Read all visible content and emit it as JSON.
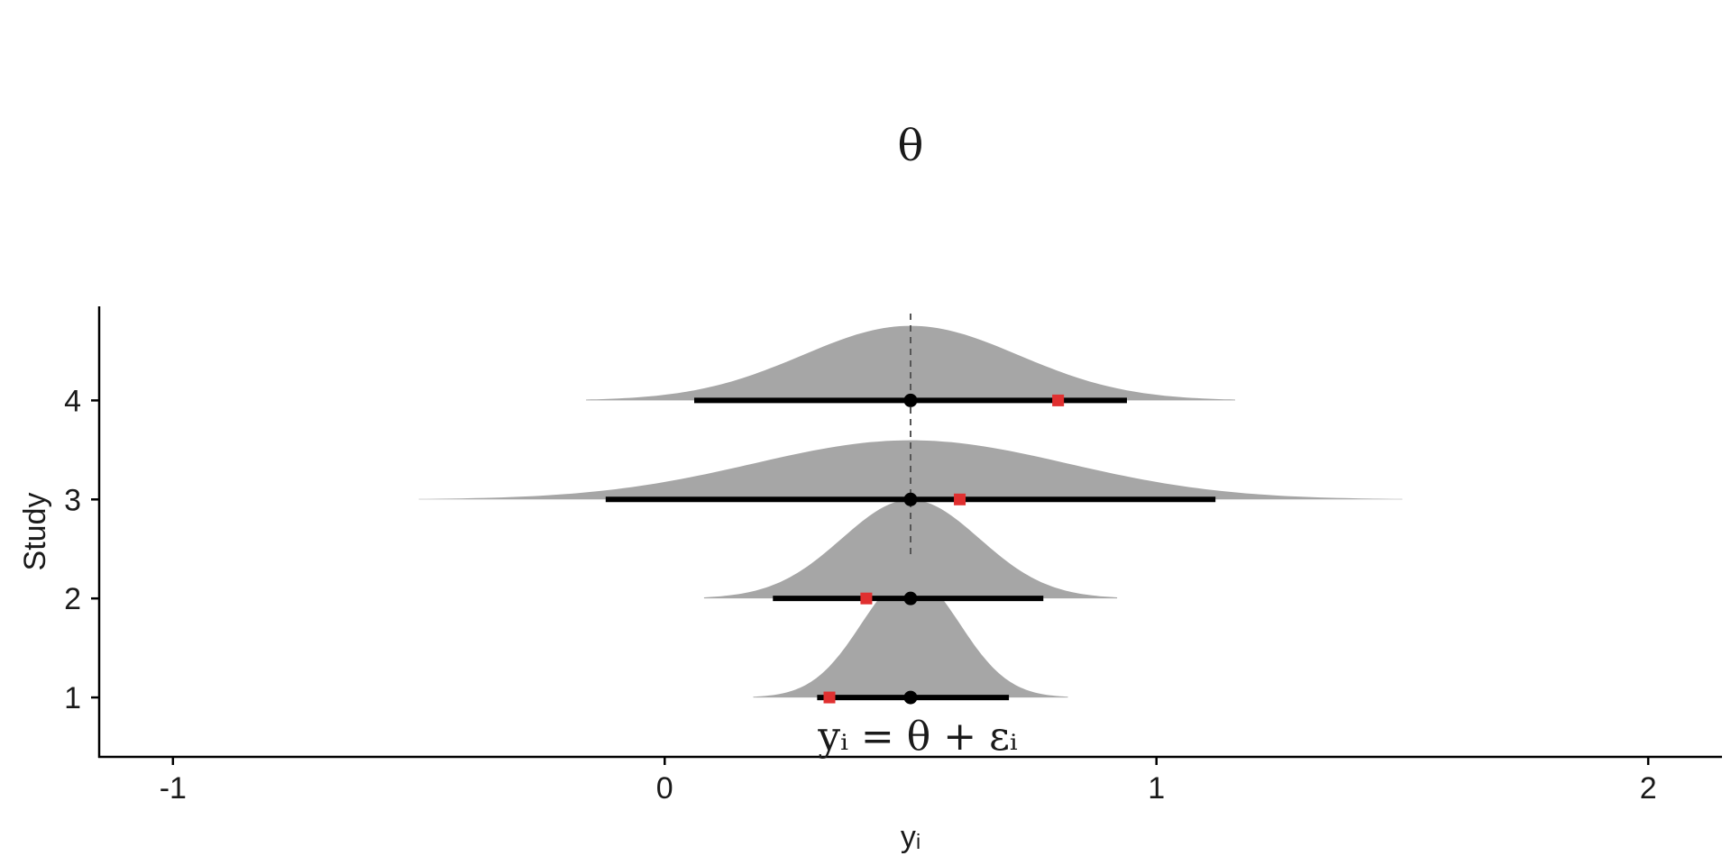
{
  "chart_data": {
    "type": "forest-density",
    "title": "θ",
    "annotation": "yᵢ = θ + εᵢ",
    "xlabel": "yᵢ",
    "ylabel": "Study",
    "xlim": [
      -1.15,
      2.15
    ],
    "ylim": [
      0.4,
      4.95
    ],
    "x_ticks": [
      -1,
      0,
      1,
      2
    ],
    "x_tick_labels": [
      "-1",
      "0",
      "1",
      "2"
    ],
    "y_ticks": [
      1,
      2,
      3,
      4
    ],
    "y_tick_labels": [
      "1",
      "2",
      "3",
      "4"
    ],
    "reference_value": 0.5,
    "studies": [
      {
        "study": 1,
        "estimate": 0.5,
        "interval": [
          0.31,
          0.7
        ],
        "observed": 0.335,
        "density_sd": 0.1,
        "density_range": [
          0.18,
          0.82
        ]
      },
      {
        "study": 2,
        "estimate": 0.5,
        "interval": [
          0.22,
          0.77
        ],
        "observed": 0.41,
        "density_sd": 0.14,
        "density_range": [
          0.08,
          0.92
        ]
      },
      {
        "study": 3,
        "estimate": 0.5,
        "interval": [
          -0.12,
          1.12
        ],
        "observed": 0.6,
        "density_sd": 0.32,
        "density_range": [
          -0.5,
          1.5
        ]
      },
      {
        "study": 4,
        "estimate": 0.5,
        "interval": [
          0.06,
          0.94
        ],
        "observed": 0.8,
        "density_sd": 0.22,
        "density_range": [
          -0.16,
          1.16
        ]
      }
    ],
    "colors": {
      "density_fill": "#a6a6a6",
      "interval": "#000000",
      "point_estimate": "#000000",
      "observed": "#e03030",
      "reference_line": "#555555"
    },
    "grid": false,
    "legend": "none"
  }
}
